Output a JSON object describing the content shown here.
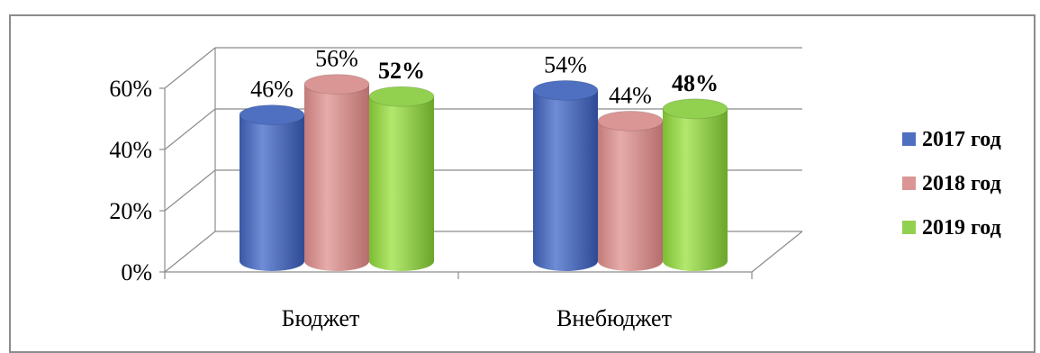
{
  "chart_data": {
    "type": "bar",
    "categories": [
      "Бюджет",
      "Внебюджет"
    ],
    "series": [
      {
        "name": "2017 год",
        "values": [
          46,
          54
        ],
        "labels": [
          "46%",
          "54%"
        ],
        "color": "#4f6fc0",
        "bold": false
      },
      {
        "name": "2018 год",
        "values": [
          56,
          44
        ],
        "labels": [
          "56%",
          "44%"
        ],
        "color": "#d99694",
        "bold": false
      },
      {
        "name": "2019 год",
        "values": [
          52,
          48
        ],
        "labels": [
          "52%",
          "48%"
        ],
        "color": "#92d050",
        "bold": true
      }
    ],
    "y_ticks": [
      "0%",
      "20%",
      "40%",
      "60%"
    ],
    "ylim": [
      0,
      60
    ],
    "style": "3d-cylinder",
    "grid": true,
    "legend_position": "right"
  }
}
